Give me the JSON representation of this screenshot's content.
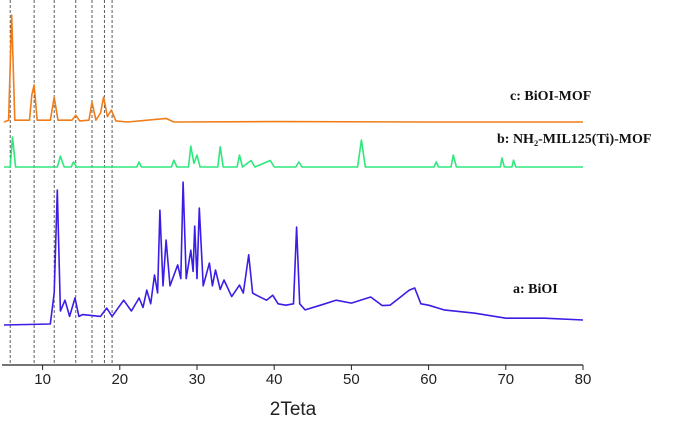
{
  "chart_data": {
    "type": "line",
    "x_label": "2Teta",
    "xlim": [
      5,
      80
    ],
    "xticks": [
      10,
      20,
      30,
      40,
      50,
      60,
      70,
      80
    ],
    "ylim": [
      0,
      100
    ],
    "reference_lines": [
      5.8,
      8.9,
      11.5,
      14.3,
      16.4,
      18.0,
      19.0
    ],
    "series": [
      {
        "name": "c: BiOI-MOF",
        "color": "#f07d1a",
        "x": [
          5,
          5.6,
          6.0,
          6.4,
          8.3,
          8.6,
          8.9,
          9.3,
          11.0,
          11.5,
          12.0,
          13.8,
          14.3,
          14.8,
          16.0,
          16.4,
          16.9,
          17.5,
          17.9,
          18.4,
          18.9,
          19.5,
          21,
          26,
          27,
          40,
          60,
          80
        ],
        "values": [
          67.5,
          68,
          97.2,
          68,
          68,
          75,
          77.8,
          68,
          68,
          74.4,
          68,
          68,
          69.4,
          67.8,
          68,
          73,
          68,
          70,
          74.4,
          69,
          70.8,
          67.8,
          67.5,
          68.5,
          67.5,
          67.6,
          67.5,
          67.5
        ]
      },
      {
        "name": "b: NH₂-MIL125(Ti)-MOF",
        "color": "#2ee87c",
        "x": [
          5,
          5.8,
          6.1,
          6.5,
          11.9,
          12.3,
          12.8,
          13.7,
          14.0,
          14.4,
          22.2,
          22.5,
          22.8,
          26.7,
          27.0,
          27.4,
          28.9,
          29.2,
          29.6,
          30.0,
          30.4,
          32.7,
          33.0,
          33.4,
          35.2,
          35.5,
          35.9,
          37.0,
          37.5,
          39.5,
          40,
          42.8,
          43.2,
          43.6,
          50.8,
          51.3,
          51.8,
          60.7,
          61.0,
          61.3,
          62.9,
          63.2,
          63.6,
          69.3,
          69.5,
          69.8,
          70.8,
          71.0,
          71.3,
          80
        ],
        "values": [
          55,
          55,
          63.3,
          55,
          55,
          58,
          55,
          55,
          56.4,
          55,
          55,
          56.4,
          55,
          55,
          56.9,
          55,
          55,
          60.8,
          56,
          58.3,
          55,
          55,
          60.6,
          55,
          55,
          58.3,
          55,
          56.8,
          55,
          56.8,
          55,
          55,
          56.4,
          55,
          55,
          62.5,
          55,
          55,
          56.4,
          55,
          55,
          58.3,
          55,
          55,
          57.5,
          55,
          55,
          56.9,
          55,
          55
        ]
      },
      {
        "name": "a: BiOI",
        "color": "#3a1ee6",
        "x": [
          5,
          11,
          11.5,
          11.9,
          12.3,
          12.9,
          13.5,
          14.2,
          14.7,
          15.2,
          17.5,
          18.3,
          19,
          20.5,
          21.5,
          22.5,
          23,
          23.5,
          24,
          24.5,
          24.9,
          25.2,
          25.6,
          26,
          26.5,
          27.5,
          27.9,
          28.2,
          28.6,
          29.2,
          29.5,
          29.7,
          30,
          30.3,
          30.8,
          31.6,
          32,
          32.4,
          33,
          33.5,
          34.5,
          35.5,
          36,
          36.7,
          37.2,
          37.7,
          39,
          39.8,
          40.5,
          41.5,
          42.5,
          42.9,
          43.3,
          44,
          46,
          48,
          50,
          52.5,
          54,
          55,
          57.5,
          58.2,
          59,
          60,
          62,
          66,
          70,
          75,
          80
        ],
        "values": [
          11.1,
          11.4,
          20,
          48.6,
          15,
          18,
          13.5,
          18.6,
          13.5,
          14,
          13.5,
          15.8,
          13.5,
          18,
          15,
          18.6,
          16,
          20.8,
          17,
          25,
          20,
          43,
          22,
          34.7,
          22,
          27.8,
          24,
          50.8,
          24,
          31.9,
          26,
          38.6,
          24,
          43.6,
          22,
          28.3,
          22,
          26.4,
          21,
          23.6,
          19,
          22.2,
          20,
          30.6,
          20,
          19.4,
          18,
          19.4,
          17,
          16.6,
          17,
          38.3,
          17,
          15.3,
          16.6,
          18,
          17.2,
          18.9,
          16.5,
          16.6,
          20.8,
          21.4,
          17,
          16.6,
          15.3,
          14.4,
          13,
          13,
          12.5
        ]
      }
    ]
  }
}
